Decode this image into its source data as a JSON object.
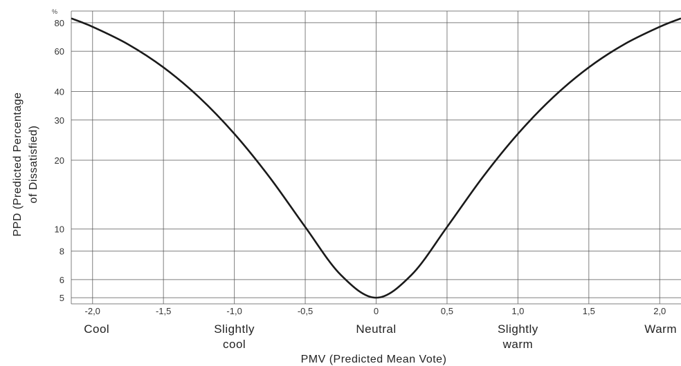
{
  "chart_data": {
    "type": "line",
    "xlabel": "PMV (Predicted Mean Vote)",
    "ylabel_line1": "PPD (Predicted Percentage",
    "ylabel_line2": "of Dissatisfied)",
    "y_unit": "%",
    "y_scale": "log",
    "xlim": [
      -2.15,
      2.15
    ],
    "ylim": [
      4.7,
      90
    ],
    "x_ticks": [
      -2.0,
      -1.5,
      -1.0,
      -0.5,
      0,
      0.5,
      1.0,
      1.5,
      2.0
    ],
    "x_tick_labels": [
      "-2,0",
      "-1,5",
      "-1,0",
      "-0,5",
      "0",
      "0,5",
      "1,0",
      "1,5",
      "2,0"
    ],
    "y_ticks": [
      5,
      6,
      8,
      10,
      20,
      30,
      40,
      60,
      80
    ],
    "y_tick_labels": [
      "5",
      "6",
      "8",
      "10",
      "20",
      "30",
      "40",
      "60",
      "80"
    ],
    "x_categories": [
      {
        "x": -2.0,
        "label": [
          "Cool"
        ]
      },
      {
        "x": -1.0,
        "label": [
          "Slightly",
          "cool"
        ]
      },
      {
        "x": 0,
        "label": [
          "Neutral"
        ]
      },
      {
        "x": 1.0,
        "label": [
          "Slightly",
          "warm"
        ]
      },
      {
        "x": 2.0,
        "label": [
          "Warm"
        ]
      }
    ],
    "grid": true,
    "series": [
      {
        "x": [
          -2.15,
          -2.0,
          -1.75,
          -1.5,
          -1.25,
          -1.0,
          -0.75,
          -0.5,
          -0.25,
          0,
          0.25,
          0.5,
          0.75,
          1.0,
          1.25,
          1.5,
          1.75,
          2.0,
          2.15
        ],
        "y": [
          83.6,
          76.8,
          64.4,
          51.0,
          37.8,
          26.1,
          16.8,
          10.2,
          6.3,
          5.0,
          6.3,
          10.2,
          16.8,
          26.1,
          37.8,
          51.0,
          64.4,
          76.8,
          83.6
        ]
      }
    ]
  }
}
